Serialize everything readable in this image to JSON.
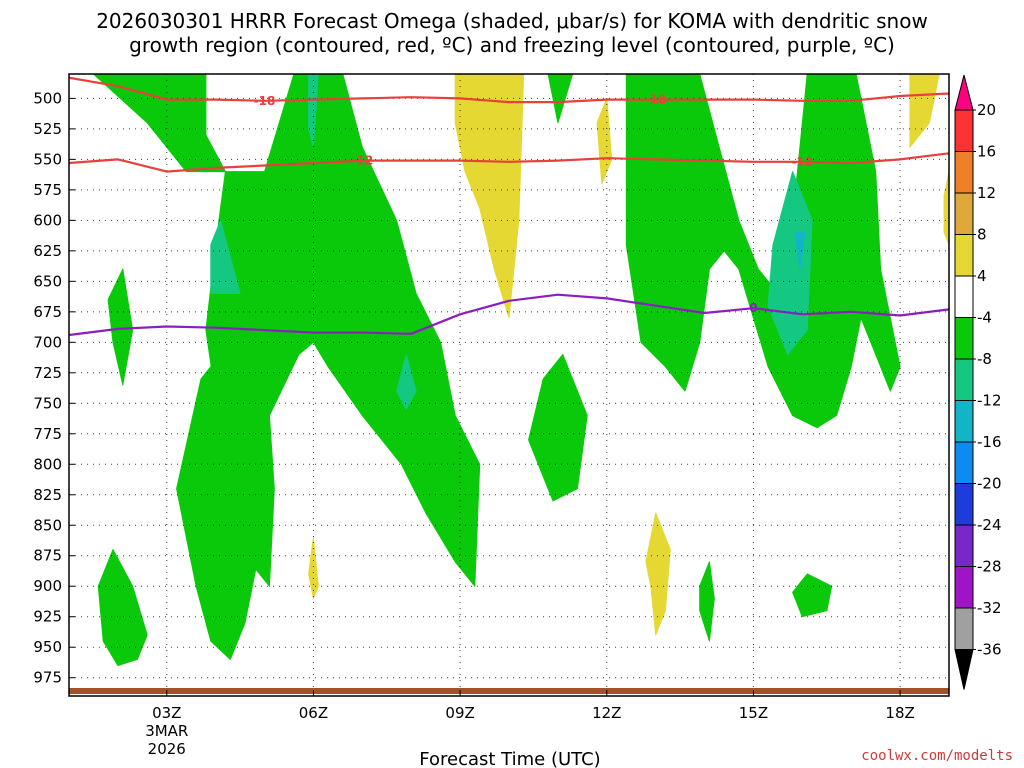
{
  "chart_data": {
    "type": "time-height cross-section",
    "title_line1": "2026030301 HRRR Forecast Omega (shaded, μbar/s) for KOMA with dendritic snow",
    "title_line2": "growth region (contoured, red, ºC) and freezing level (contoured, purple, ºC)",
    "xlabel": "Forecast Time (UTC)",
    "credit": "coolwx.com/modelts",
    "x_range_hours": [
      1,
      19
    ],
    "x_ticks": [
      {
        "hour": 3,
        "label": "03Z",
        "sub1": "3MAR",
        "sub2": "2026"
      },
      {
        "hour": 6,
        "label": "06Z"
      },
      {
        "hour": 9,
        "label": "09Z"
      },
      {
        "hour": 12,
        "label": "12Z"
      },
      {
        "hour": 15,
        "label": "15Z"
      },
      {
        "hour": 18,
        "label": "18Z"
      }
    ],
    "y_range_mb": [
      990,
      480
    ],
    "y_ticks": [
      500,
      525,
      550,
      575,
      600,
      625,
      650,
      675,
      700,
      725,
      750,
      775,
      800,
      825,
      850,
      875,
      900,
      925,
      950,
      975
    ],
    "colorbar": {
      "ticks": [
        20,
        16,
        12,
        8,
        4,
        -4,
        -8,
        -12,
        -16,
        -20,
        -24,
        -28,
        -32,
        -36
      ],
      "colors": [
        "#ff0080",
        "#ff3232",
        "#f08028",
        "#e0a83a",
        "#e6d832",
        "#ffffff",
        "#0ac80a",
        "#14c882",
        "#14b4c8",
        "#0a8cf0",
        "#1e3cdc",
        "#7828c8",
        "#a014c8",
        "#a0a0a0",
        "#000000"
      ],
      "labels_text": [
        "20",
        "16",
        "12",
        "8",
        "4",
        "-4",
        "-8",
        "-12",
        "-16",
        "-20",
        "-24",
        "-28",
        "-32",
        "-36"
      ]
    },
    "contours": [
      {
        "name": "dendritic-top",
        "color": "#e8403a",
        "level_label": "-18",
        "points": [
          [
            1,
            483
          ],
          [
            2,
            490
          ],
          [
            3,
            501
          ],
          [
            4,
            501
          ],
          [
            5,
            502
          ],
          [
            6,
            501
          ],
          [
            7,
            500
          ],
          [
            8,
            499
          ],
          [
            9,
            500
          ],
          [
            10,
            503
          ],
          [
            11,
            503
          ],
          [
            12,
            501
          ],
          [
            13,
            501
          ],
          [
            14,
            501
          ],
          [
            15,
            501
          ],
          [
            16,
            502
          ],
          [
            17,
            502
          ],
          [
            18,
            498
          ],
          [
            19,
            496
          ]
        ],
        "labels": [
          [
            5.0,
            502
          ],
          [
            13.0,
            501
          ]
        ]
      },
      {
        "name": "dendritic-bottom",
        "color": "#e8403a",
        "level_label": "-12",
        "points": [
          [
            1,
            553
          ],
          [
            2,
            550
          ],
          [
            3,
            560
          ],
          [
            4,
            557
          ],
          [
            5,
            555
          ],
          [
            6,
            553
          ],
          [
            7,
            551
          ],
          [
            8,
            551
          ],
          [
            9,
            551
          ],
          [
            10,
            552
          ],
          [
            11,
            551
          ],
          [
            12,
            549
          ],
          [
            13,
            550
          ],
          [
            14,
            551
          ],
          [
            15,
            552
          ],
          [
            16,
            552
          ],
          [
            17,
            553
          ],
          [
            18,
            550
          ],
          [
            19,
            545
          ]
        ],
        "labels": [
          [
            7.0,
            551
          ],
          [
            16.0,
            552
          ]
        ]
      },
      {
        "name": "freezing-level",
        "color": "#8c1ec0",
        "level_label": "0",
        "points": [
          [
            1,
            694
          ],
          [
            2,
            689
          ],
          [
            3,
            687
          ],
          [
            4,
            688
          ],
          [
            5,
            690
          ],
          [
            6,
            692
          ],
          [
            7,
            692
          ],
          [
            8,
            693
          ],
          [
            9,
            677
          ],
          [
            10,
            666
          ],
          [
            11,
            661
          ],
          [
            12,
            664
          ],
          [
            13,
            670
          ],
          [
            14,
            676
          ],
          [
            15,
            672
          ],
          [
            16,
            677
          ],
          [
            17,
            675
          ],
          [
            18,
            678
          ],
          [
            19,
            673
          ]
        ],
        "labels": [
          [
            15.0,
            672
          ]
        ]
      }
    ],
    "shaded_regions": [
      {
        "level": "-4 to -8",
        "color": "#0ac80a",
        "polygons": [
          [
            [
              1.5,
              480
            ],
            [
              3.8,
              480
            ],
            [
              3.8,
              530
            ],
            [
              4.2,
              560
            ],
            [
              4.0,
              620
            ],
            [
              3.8,
              690
            ],
            [
              4.2,
              800
            ],
            [
              4.7,
              880
            ],
            [
              5.1,
              900
            ],
            [
              5.2,
              820
            ],
            [
              5.1,
              760
            ],
            [
              5.7,
              710
            ],
            [
              6.0,
              700
            ],
            [
              6.3,
              720
            ],
            [
              7.0,
              760
            ],
            [
              7.8,
              800
            ],
            [
              8.3,
              840
            ],
            [
              8.9,
              880
            ],
            [
              9.3,
              900
            ],
            [
              9.4,
              800
            ],
            [
              8.9,
              760
            ],
            [
              8.6,
              700
            ],
            [
              8.1,
              660
            ],
            [
              7.7,
              600
            ],
            [
              7.0,
              540
            ],
            [
              6.6,
              480
            ],
            [
              5.6,
              480
            ],
            [
              5.0,
              560
            ],
            [
              3.4,
              560
            ],
            [
              2.6,
              520
            ]
          ],
          [
            [
              3.2,
              820
            ],
            [
              3.7,
              730
            ],
            [
              4.3,
              700
            ],
            [
              4.7,
              780
            ],
            [
              4.9,
              870
            ],
            [
              4.6,
              930
            ],
            [
              4.3,
              960
            ],
            [
              3.9,
              945
            ],
            [
              3.6,
              900
            ]
          ],
          [
            [
              1.6,
              900
            ],
            [
              1.9,
              870
            ],
            [
              2.3,
              900
            ],
            [
              2.6,
              940
            ],
            [
              2.4,
              960
            ],
            [
              2.0,
              965
            ],
            [
              1.7,
              945
            ]
          ],
          [
            [
              1.8,
              665
            ],
            [
              2.1,
              640
            ],
            [
              2.3,
              690
            ],
            [
              2.1,
              735
            ],
            [
              1.9,
              700
            ]
          ],
          [
            [
              10.4,
              780
            ],
            [
              10.7,
              730
            ],
            [
              11.1,
              710
            ],
            [
              11.6,
              760
            ],
            [
              11.4,
              820
            ],
            [
              10.9,
              830
            ],
            [
              10.6,
              800
            ]
          ],
          [
            [
              12.4,
              480
            ],
            [
              13.9,
              480
            ],
            [
              14.3,
              540
            ],
            [
              14.7,
              600
            ],
            [
              15.1,
              640
            ],
            [
              15.5,
              660
            ],
            [
              15.8,
              600
            ],
            [
              16.1,
              480
            ],
            [
              17.1,
              480
            ],
            [
              17.5,
              560
            ],
            [
              17.6,
              640
            ],
            [
              17.8,
              680
            ],
            [
              18.0,
              720
            ],
            [
              17.8,
              740
            ],
            [
              17.4,
              700
            ],
            [
              17.2,
              680
            ],
            [
              17.0,
              720
            ],
            [
              16.7,
              760
            ],
            [
              16.3,
              770
            ],
            [
              15.8,
              760
            ],
            [
              15.3,
              720
            ],
            [
              15.0,
              680
            ],
            [
              14.7,
              640
            ],
            [
              14.4,
              625
            ],
            [
              14.1,
              640
            ],
            [
              13.9,
              700
            ],
            [
              13.6,
              740
            ],
            [
              13.2,
              720
            ],
            [
              12.7,
              700
            ],
            [
              12.4,
              620
            ]
          ],
          [
            [
              15.8,
              905
            ],
            [
              16.1,
              890
            ],
            [
              16.6,
              900
            ],
            [
              16.5,
              920
            ],
            [
              16.0,
              925
            ]
          ],
          [
            [
              13.9,
              900
            ],
            [
              14.1,
              880
            ],
            [
              14.2,
              910
            ],
            [
              14.1,
              945
            ],
            [
              13.9,
              920
            ]
          ],
          [
            [
              10.8,
              480
            ],
            [
              11.3,
              480
            ],
            [
              11.0,
              520
            ]
          ]
        ]
      },
      {
        "level": "-8 to -12",
        "color": "#14c882",
        "polygons": [
          [
            [
              5.9,
              480
            ],
            [
              6.1,
              480
            ],
            [
              6.0,
              540
            ],
            [
              5.9,
              525
            ]
          ],
          [
            [
              3.9,
              620
            ],
            [
              4.1,
              600
            ],
            [
              4.5,
              660
            ],
            [
              3.9,
              660
            ]
          ],
          [
            [
              7.7,
              740
            ],
            [
              7.9,
              710
            ],
            [
              8.1,
              740
            ],
            [
              7.9,
              755
            ]
          ],
          [
            [
              15.4,
              620
            ],
            [
              15.8,
              560
            ],
            [
              16.2,
              600
            ],
            [
              16.1,
              690
            ],
            [
              15.7,
              710
            ],
            [
              15.3,
              670
            ]
          ]
        ]
      },
      {
        "level": "-12 to -16",
        "color": "#14b4c8",
        "polygons": [
          [
            [
              15.85,
              610
            ],
            [
              16.05,
              610
            ],
            [
              15.95,
              640
            ]
          ]
        ]
      },
      {
        "level": "4 to 8",
        "color": "#e6d832",
        "polygons": [
          [
            [
              8.9,
              480
            ],
            [
              10.3,
              480
            ],
            [
              10.2,
              600
            ],
            [
              10.0,
              680
            ],
            [
              9.7,
              640
            ],
            [
              9.4,
              590
            ],
            [
              9.1,
              560
            ],
            [
              8.9,
              520
            ]
          ],
          [
            [
              11.8,
              520
            ],
            [
              12.0,
              500
            ],
            [
              12.1,
              550
            ],
            [
              11.9,
              570
            ]
          ],
          [
            [
              12.8,
              880
            ],
            [
              13.0,
              840
            ],
            [
              13.3,
              870
            ],
            [
              13.2,
              920
            ],
            [
              13.0,
              940
            ],
            [
              12.9,
              900
            ]
          ],
          [
            [
              5.9,
              890
            ],
            [
              6.0,
              860
            ],
            [
              6.1,
              900
            ],
            [
              6.0,
              910
            ]
          ],
          [
            [
              18.2,
              480
            ],
            [
              18.8,
              480
            ],
            [
              18.6,
              520
            ],
            [
              18.2,
              540
            ]
          ],
          [
            [
              18.9,
              580
            ],
            [
              19.0,
              560
            ],
            [
              19.0,
              620
            ],
            [
              18.9,
              610
            ]
          ]
        ]
      }
    ]
  }
}
